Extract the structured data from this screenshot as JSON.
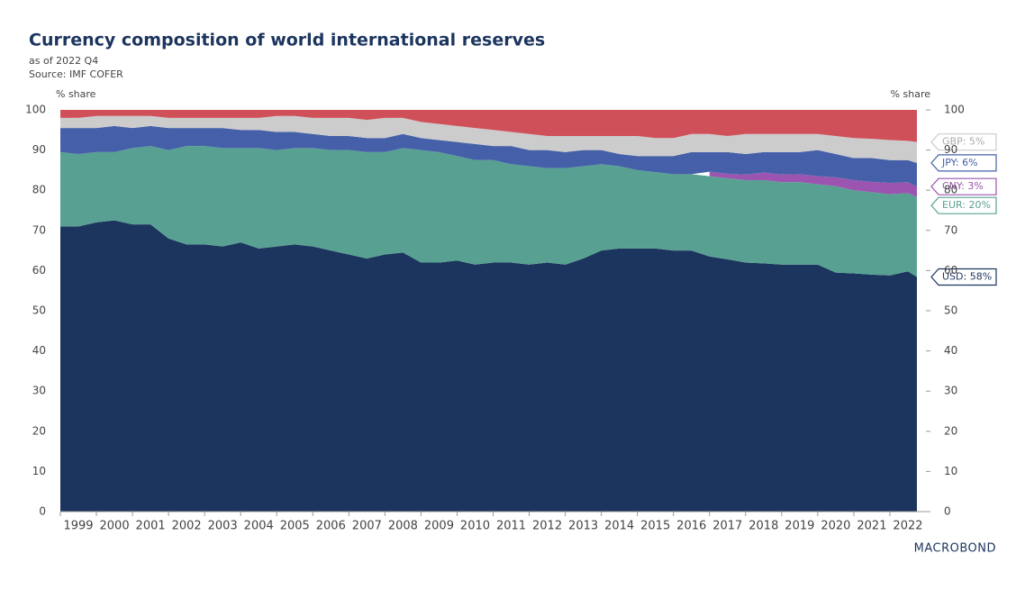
{
  "chart_data": {
    "type": "stacked-area",
    "title": "Currency composition of world international reserves",
    "subtitle": "as of 2022 Q4",
    "source": "Source: IMF COFER",
    "y_label": "% share",
    "brand": "MACROBOND",
    "x": [
      1999,
      1999.5,
      2000,
      2000.5,
      2001,
      2001.5,
      2002,
      2002.5,
      2003,
      2003.5,
      2004,
      2004.5,
      2005,
      2005.5,
      2006,
      2006.5,
      2007,
      2007.5,
      2008,
      2008.5,
      2009,
      2009.5,
      2010,
      2010.5,
      2011,
      2011.5,
      2012,
      2012.5,
      2013,
      2013.5,
      2014,
      2014.5,
      2015,
      2015.5,
      2016,
      2016.5,
      2017,
      2017.5,
      2018,
      2018.5,
      2019,
      2019.5,
      2020,
      2020.5,
      2021,
      2021.5,
      2022,
      2022.5,
      2022.75
    ],
    "series": [
      {
        "name": "USD: 58%",
        "color": "#1c355e",
        "values": [
          71,
          71,
          72,
          72.5,
          71.5,
          71.5,
          68,
          66.5,
          66.5,
          66,
          67,
          65.5,
          66,
          66.5,
          66,
          65,
          64,
          63,
          64,
          64.5,
          62,
          62,
          62.5,
          61.5,
          62,
          62,
          61.5,
          62,
          61.5,
          63,
          65,
          65.5,
          65.5,
          65.5,
          65,
          65,
          63.5,
          62.8,
          62,
          61.8,
          61.5,
          61.5,
          61.5,
          59.5,
          59.3,
          59,
          58.8,
          59.8,
          58.4
        ]
      },
      {
        "name": "EUR: 20%",
        "color": "#58a192",
        "values": [
          18.5,
          18,
          17.5,
          17,
          19,
          19.5,
          22,
          24.5,
          24.5,
          24.5,
          23.5,
          25,
          24,
          24,
          24.5,
          25,
          26,
          26.5,
          25.5,
          26,
          28,
          27.5,
          26,
          26,
          25.5,
          24.5,
          24.5,
          23.5,
          24,
          23,
          21.5,
          20.5,
          19.5,
          19,
          19,
          19,
          20,
          20.2,
          20.5,
          20.7,
          20.5,
          20.5,
          20,
          21.5,
          20.7,
          20.5,
          20.2,
          19.5,
          19.9
        ]
      },
      {
        "name": "CNY: 3%",
        "color": "#9b55b0",
        "values": [
          null,
          null,
          null,
          null,
          null,
          null,
          null,
          null,
          null,
          null,
          null,
          null,
          null,
          null,
          null,
          null,
          null,
          null,
          null,
          null,
          null,
          null,
          null,
          null,
          null,
          null,
          null,
          null,
          null,
          null,
          null,
          null,
          null,
          null,
          null,
          null,
          1.1,
          1.1,
          1.4,
          1.9,
          1.9,
          2.0,
          2.0,
          2.2,
          2.5,
          2.6,
          2.8,
          2.7,
          2.6
        ]
      },
      {
        "name": "JPY: 6%",
        "color": "#4560a8",
        "values": [
          6,
          6.5,
          6,
          6.5,
          5,
          5,
          5.5,
          4.5,
          4.5,
          5,
          4.5,
          4.5,
          4.5,
          4,
          3.5,
          3.5,
          3.5,
          3.5,
          3.5,
          3.5,
          3,
          3,
          3.5,
          4,
          3.5,
          4.5,
          4,
          4.5,
          4,
          4,
          3.5,
          3,
          3.5,
          4,
          4.5,
          5.5,
          4.9,
          5.4,
          5.1,
          5.1,
          5.6,
          5.5,
          6.5,
          5.8,
          5.5,
          5.9,
          5.7,
          5.5,
          5.9
        ]
      },
      {
        "name": "GBP: 5%",
        "color": "#cccccc",
        "values": [
          2.5,
          2.5,
          3,
          2.5,
          3,
          2.5,
          2.5,
          2.5,
          2.5,
          2.5,
          3,
          3,
          4,
          4,
          4,
          4.5,
          4.5,
          4.5,
          5,
          4,
          4,
          4,
          4,
          4,
          4,
          3.5,
          4,
          3.5,
          4,
          3.5,
          3.5,
          4.5,
          5,
          4.5,
          4.5,
          4.5,
          4.5,
          4,
          5,
          4.5,
          4.5,
          4.5,
          4,
          4.5,
          5,
          4.8,
          5,
          4.8,
          5.2
        ]
      },
      {
        "color": "#d0505a",
        "values": [
          2,
          2,
          1.5,
          1.5,
          1.5,
          1.5,
          2,
          2,
          2,
          2,
          2,
          2,
          1.5,
          1.5,
          2,
          2,
          2,
          2.5,
          2,
          2,
          3,
          3.5,
          4,
          4.5,
          5,
          5.5,
          6,
          6.5,
          6.5,
          6.5,
          6.5,
          6.5,
          6.5,
          7,
          7,
          6,
          6,
          6.5,
          6,
          6,
          6,
          6,
          6,
          6.5,
          7,
          7.2,
          7.5,
          7.7,
          8
        ]
      }
    ],
    "xlim": [
      1999,
      2023
    ],
    "xticks": [
      1999,
      2000,
      2001,
      2002,
      2003,
      2004,
      2005,
      2006,
      2007,
      2008,
      2009,
      2010,
      2011,
      2012,
      2013,
      2014,
      2015,
      2016,
      2017,
      2018,
      2019,
      2020,
      2021,
      2022
    ],
    "ylim": [
      0,
      100
    ],
    "yticks": [
      0,
      10,
      20,
      30,
      40,
      50,
      60,
      70,
      80,
      90,
      100
    ]
  }
}
